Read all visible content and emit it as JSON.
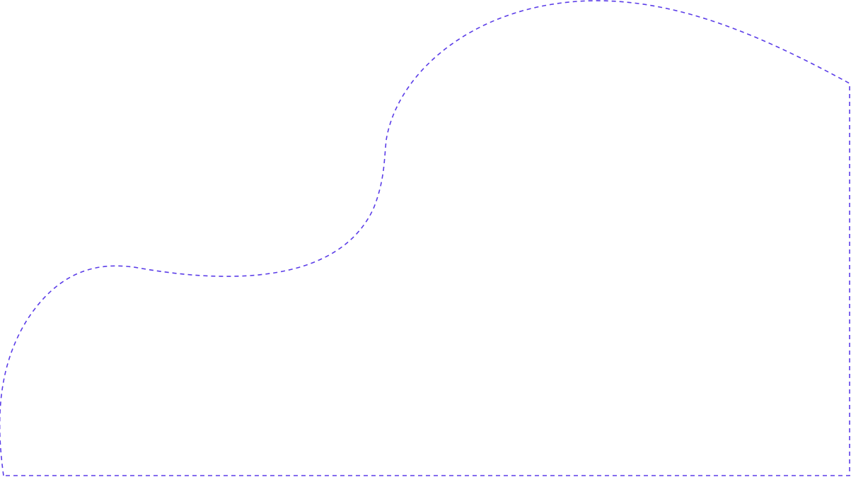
{
  "shape": {
    "stroke_color": "#5b3de8",
    "fill_color": "none",
    "line_style": "dashed"
  }
}
